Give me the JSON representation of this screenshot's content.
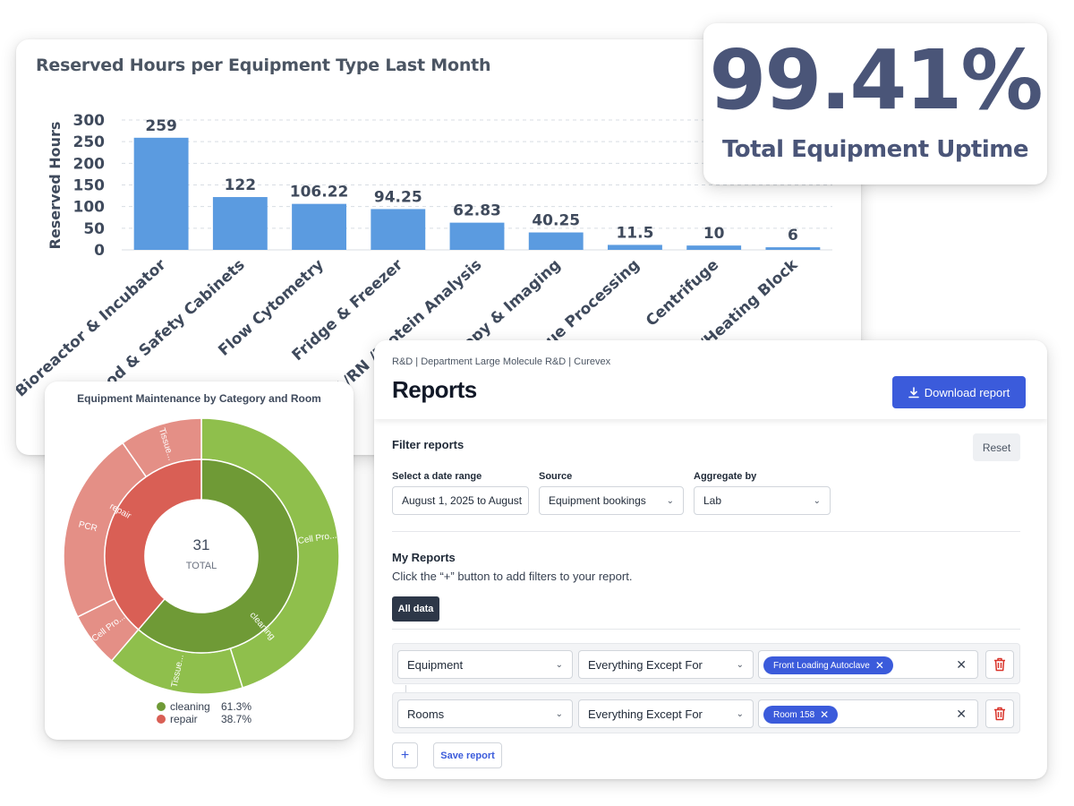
{
  "bar_chart": {
    "title": "Reserved Hours per Equipment Type Last Month",
    "colors": {
      "bar": "#5b9be0",
      "text": "#3f4a5c",
      "grid": "#d8dde3"
    }
  },
  "chart_data": [
    {
      "type": "bar",
      "title": "Reserved Hours per Equipment Type Last Month",
      "xlabel": "",
      "ylabel": "Reserved Hours",
      "ylim": [
        0,
        300
      ],
      "yticks": [
        0,
        50,
        100,
        150,
        200,
        250,
        300
      ],
      "categories": [
        "Bioreactor & Incubator",
        "Hood & Safety Cabinets",
        "Flow Cytometry",
        "Fridge & Freezer",
        "IA/RN /Protein Analysis",
        "scopy & Imaging",
        "Tissue Processing",
        "Centrifuge",
        "r/Heating Block"
      ],
      "values": [
        259,
        122,
        106.22,
        94.25,
        62.83,
        40.25,
        11.5,
        10,
        6
      ],
      "value_labels": [
        "259",
        "122",
        "106.22",
        "94.25",
        "62.83",
        "40.25",
        "11.5",
        "10",
        "6"
      ],
      "grid": true
    },
    {
      "type": "pie",
      "title": "Equipment Maintenance by Category and Room",
      "center_value": "31",
      "center_label": "TOTAL",
      "inner_ring": [
        {
          "name": "cleaning",
          "value": 19,
          "color": "#6f9a36"
        },
        {
          "name": "repair",
          "value": 12,
          "color": "#d95f55"
        }
      ],
      "outer_ring": [
        {
          "name": "Cell Pro...",
          "parent": "cleaning",
          "value": 14,
          "color": "#8fbf4c"
        },
        {
          "name": "Tissue...",
          "parent": "cleaning",
          "value": 5,
          "color": "#8fbf4c"
        },
        {
          "name": "Cell Pro...",
          "parent": "repair",
          "value": 2,
          "color": "#e48f86"
        },
        {
          "name": "PCR",
          "parent": "repair",
          "value": 7,
          "color": "#e48f86"
        },
        {
          "name": "Tissue...",
          "parent": "repair",
          "value": 3,
          "color": "#e48f86"
        }
      ],
      "legend": [
        {
          "name": "cleaning",
          "percent": "61.3%",
          "color": "#6f9a36"
        },
        {
          "name": "repair",
          "percent": "38.7%",
          "color": "#d95f55"
        }
      ]
    }
  ],
  "uptime": {
    "value": "99.41%",
    "label": "Total Equipment Uptime"
  },
  "donut": {
    "title": "Equipment Maintenance by Category and Room"
  },
  "reports": {
    "breadcrumb": "R&D | Department Large Molecule R&D | Curevex",
    "title": "Reports",
    "download_label": "Download report",
    "filter_label": "Filter reports",
    "reset_label": "Reset",
    "date_range": {
      "label": "Select a date range",
      "value": "August 1, 2025 to August"
    },
    "source": {
      "label": "Source",
      "value": "Equipment bookings"
    },
    "aggregate": {
      "label": "Aggregate by",
      "value": "Lab"
    },
    "my_reports_label": "My Reports",
    "my_reports_hint": "Click the “+” button to add filters to your report.",
    "all_data_label": "All data",
    "filters": [
      {
        "field": "Equipment",
        "operator": "Everything Except For",
        "tag": "Front Loading Autoclave"
      },
      {
        "field": "Rooms",
        "operator": "Everything Except For",
        "tag": "Room 158"
      }
    ],
    "plus_label": "+",
    "save_label": "Save report",
    "colors": {
      "accent": "#3b5bdb",
      "trash": "#d9342b"
    }
  }
}
